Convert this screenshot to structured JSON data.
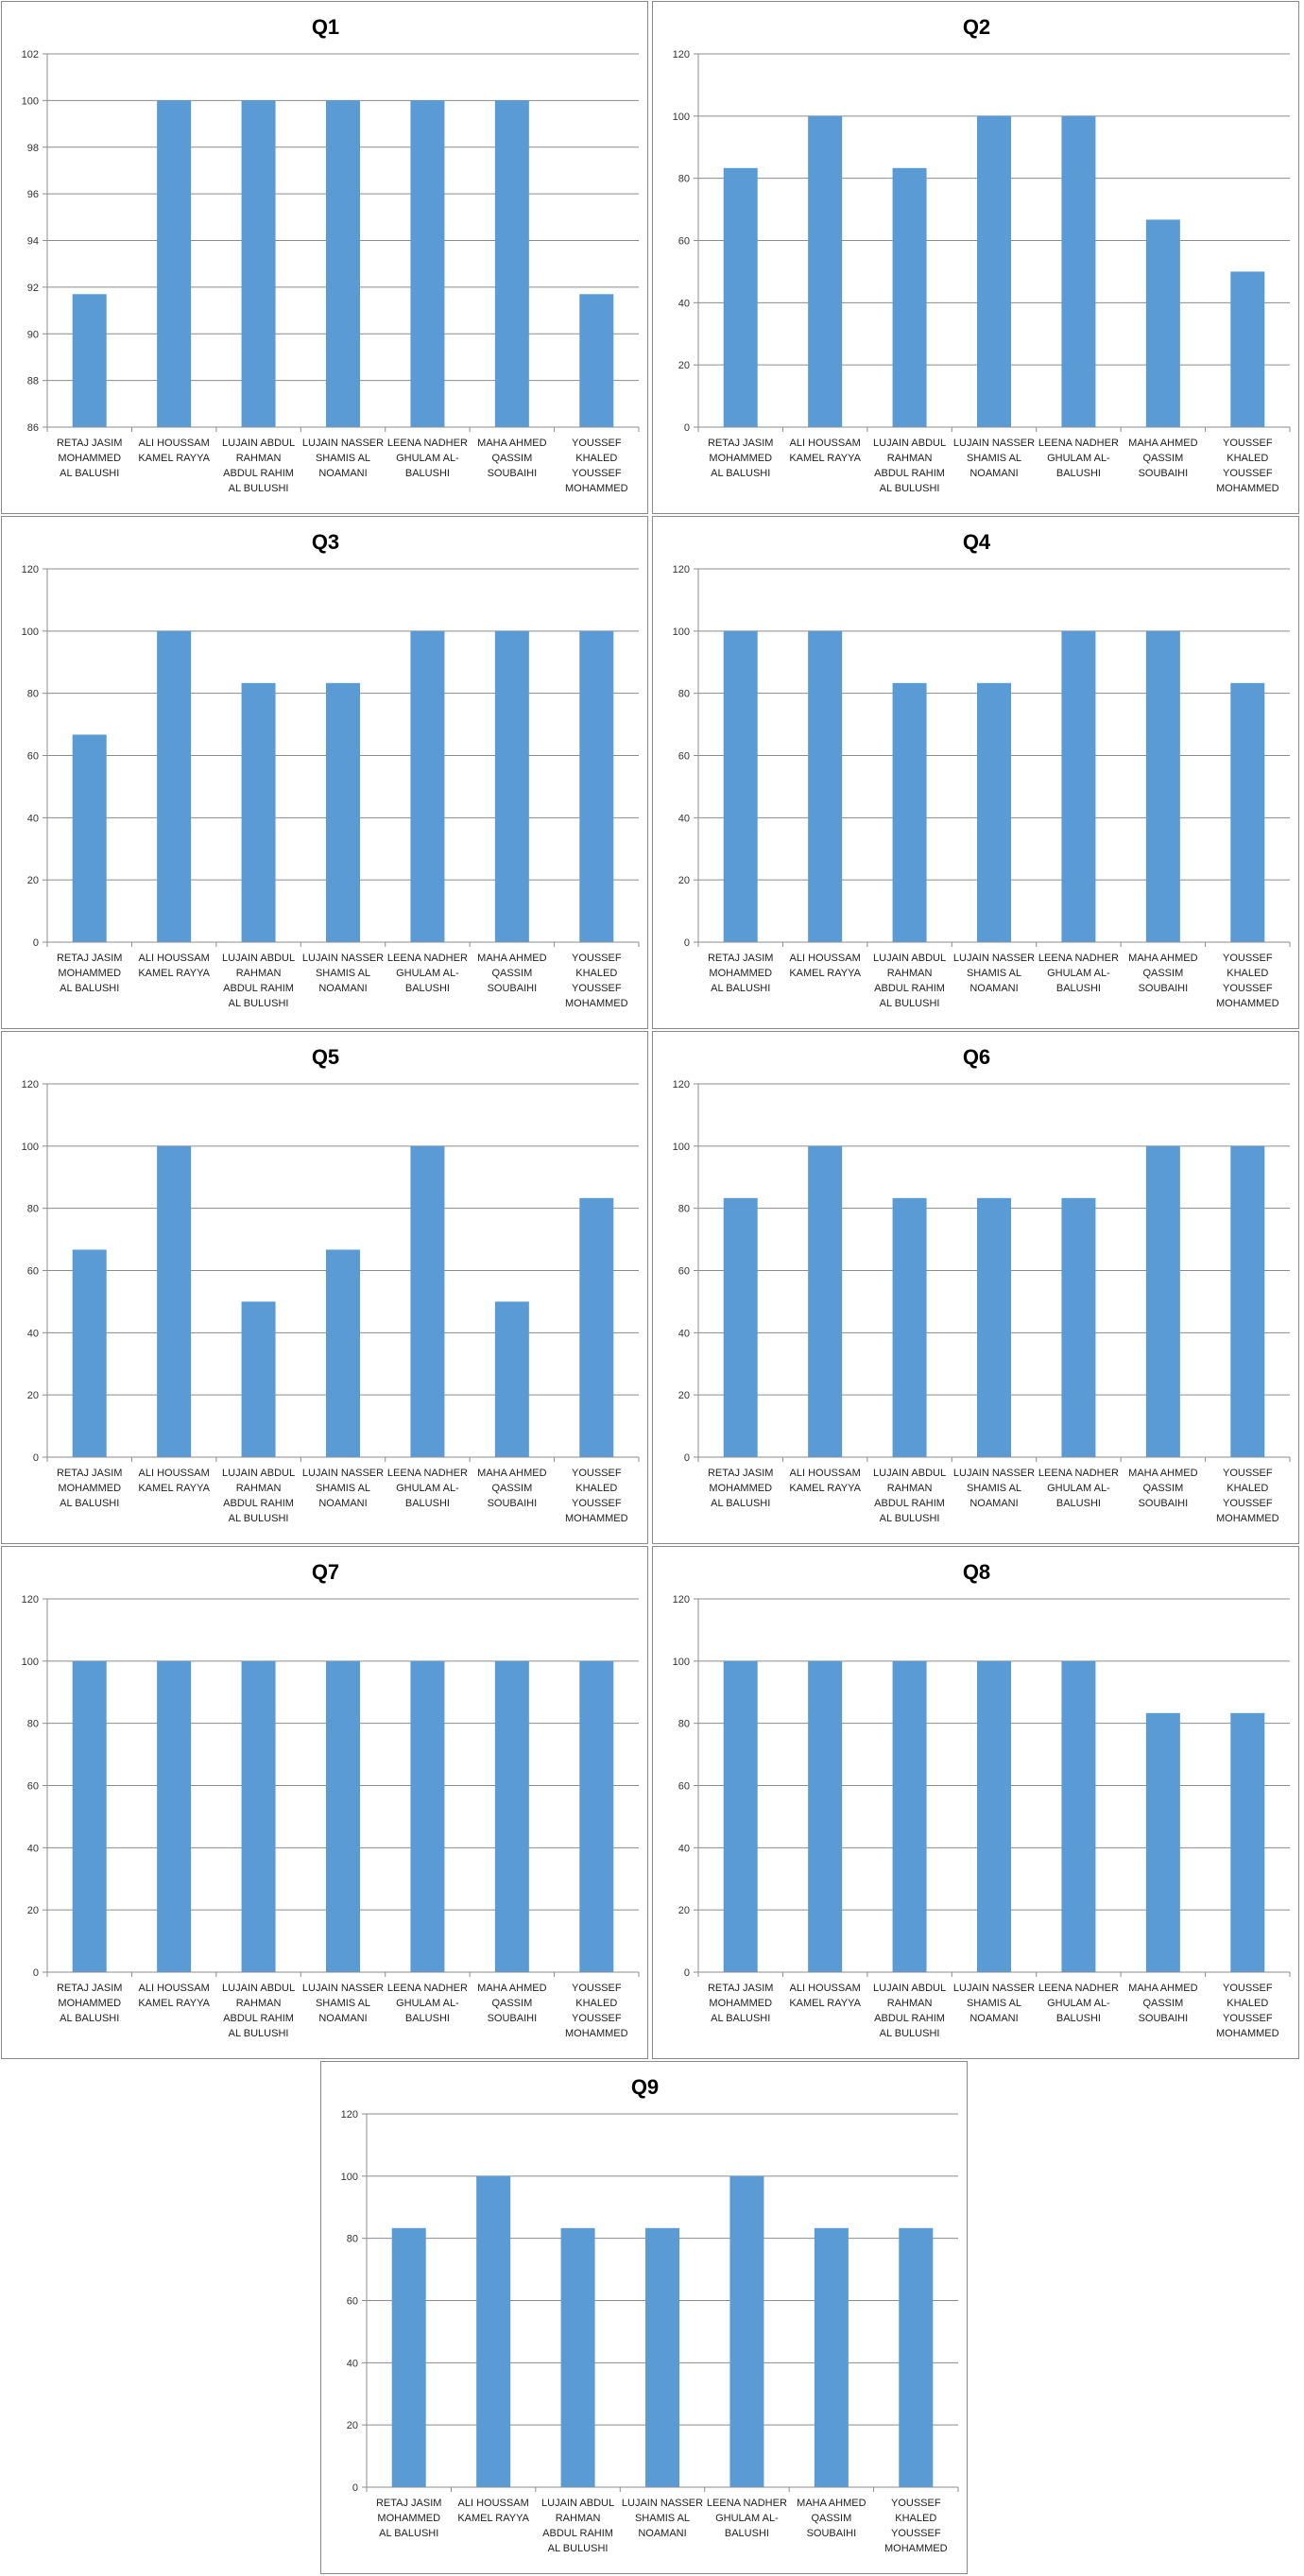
{
  "categories_lines": [
    [
      "RETAJ JASIM",
      "MOHAMMED",
      "AL BALUSHI"
    ],
    [
      "ALI HOUSSAM",
      "KAMEL RAYYA"
    ],
    [
      "LUJAIN ABDUL",
      "RAHMAN",
      "ABDUL RAHIM",
      "AL BULUSHI"
    ],
    [
      "LUJAIN NASSER",
      "SHAMIS AL",
      "NOAMANI"
    ],
    [
      "LEENA NADHER",
      "GHULAM AL-",
      "BALUSHI"
    ],
    [
      "MAHA AHMED",
      "QASSIM",
      "SOUBAIHI"
    ],
    [
      "YOUSSEF",
      "KHALED",
      "YOUSSEF",
      "MOHAMMED"
    ]
  ],
  "colors": {
    "bar": "#5b9bd5",
    "grid": "#8c8c8c"
  },
  "chart_data": [
    {
      "type": "bar",
      "title": "Q1",
      "ylim": [
        86,
        102
      ],
      "ystep": 2,
      "grid": true,
      "legend": "none",
      "categories": [
        "RETAJ JASIM MOHAMMED AL BALUSHI",
        "ALI HOUSSAM KAMEL RAYYA",
        "LUJAIN ABDUL RAHMAN ABDUL RAHIM AL BULUSHI",
        "LUJAIN NASSER SHAMIS AL NOAMANI",
        "LEENA NADHER GHULAM AL-BALUSHI",
        "MAHA AHMED QASSIM SOUBAIHI",
        "YOUSSEF KHALED YOUSSEF MOHAMMED"
      ],
      "values": [
        91.7,
        100,
        100,
        100,
        100,
        100,
        91.7
      ]
    },
    {
      "type": "bar",
      "title": "Q2",
      "ylim": [
        0,
        120
      ],
      "ystep": 20,
      "grid": true,
      "legend": "none",
      "categories": [
        "RETAJ JASIM MOHAMMED AL BALUSHI",
        "ALI HOUSSAM KAMEL RAYYA",
        "LUJAIN ABDUL RAHMAN ABDUL RAHIM AL BULUSHI",
        "LUJAIN NASSER SHAMIS AL NOAMANI",
        "LEENA NADHER GHULAM AL-BALUSHI",
        "MAHA AHMED QASSIM SOUBAIHI",
        "YOUSSEF KHALED YOUSSEF MOHAMMED"
      ],
      "values": [
        83.3,
        100,
        83.3,
        100,
        100,
        66.7,
        50
      ]
    },
    {
      "type": "bar",
      "title": "Q3",
      "ylim": [
        0,
        120
      ],
      "ystep": 20,
      "grid": true,
      "legend": "none",
      "categories": [
        "RETAJ JASIM MOHAMMED AL BALUSHI",
        "ALI HOUSSAM KAMEL RAYYA",
        "LUJAIN ABDUL RAHMAN ABDUL RAHIM AL BULUSHI",
        "LUJAIN NASSER SHAMIS AL NOAMANI",
        "LEENA NADHER GHULAM AL-BALUSHI",
        "MAHA AHMED QASSIM SOUBAIHI",
        "YOUSSEF KHALED YOUSSEF MOHAMMED"
      ],
      "values": [
        66.7,
        100,
        83.3,
        83.3,
        100,
        100,
        100
      ]
    },
    {
      "type": "bar",
      "title": "Q4",
      "ylim": [
        0,
        120
      ],
      "ystep": 20,
      "grid": true,
      "legend": "none",
      "categories": [
        "RETAJ JASIM MOHAMMED AL BALUSHI",
        "ALI HOUSSAM KAMEL RAYYA",
        "LUJAIN ABDUL RAHMAN ABDUL RAHIM AL BULUSHI",
        "LUJAIN NASSER SHAMIS AL NOAMANI",
        "LEENA NADHER GHULAM AL-BALUSHI",
        "MAHA AHMED QASSIM SOUBAIHI",
        "YOUSSEF KHALED YOUSSEF MOHAMMED"
      ],
      "values": [
        100,
        100,
        83.3,
        83.3,
        100,
        100,
        83.3
      ]
    },
    {
      "type": "bar",
      "title": "Q5",
      "ylim": [
        0,
        120
      ],
      "ystep": 20,
      "grid": true,
      "legend": "none",
      "categories": [
        "RETAJ JASIM MOHAMMED AL BALUSHI",
        "ALI HOUSSAM KAMEL RAYYA",
        "LUJAIN ABDUL RAHMAN ABDUL RAHIM AL BULUSHI",
        "LUJAIN NASSER SHAMIS AL NOAMANI",
        "LEENA NADHER GHULAM AL-BALUSHI",
        "MAHA AHMED QASSIM SOUBAIHI",
        "YOUSSEF KHALED YOUSSEF MOHAMMED"
      ],
      "values": [
        66.7,
        100,
        50,
        66.7,
        100,
        50,
        83.3
      ]
    },
    {
      "type": "bar",
      "title": "Q6",
      "ylim": [
        0,
        120
      ],
      "ystep": 20,
      "grid": true,
      "legend": "none",
      "categories": [
        "RETAJ JASIM MOHAMMED AL BALUSHI",
        "ALI HOUSSAM KAMEL RAYYA",
        "LUJAIN ABDUL RAHMAN ABDUL RAHIM AL BULUSHI",
        "LUJAIN NASSER SHAMIS AL NOAMANI",
        "LEENA NADHER GHULAM AL-BALUSHI",
        "MAHA AHMED QASSIM SOUBAIHI",
        "YOUSSEF KHALED YOUSSEF MOHAMMED"
      ],
      "values": [
        83.3,
        100,
        83.3,
        83.3,
        83.3,
        100,
        100
      ]
    },
    {
      "type": "bar",
      "title": "Q7",
      "ylim": [
        0,
        120
      ],
      "ystep": 20,
      "grid": true,
      "legend": "none",
      "categories": [
        "RETAJ JASIM MOHAMMED AL BALUSHI",
        "ALI HOUSSAM KAMEL RAYYA",
        "LUJAIN ABDUL RAHMAN ABDUL RAHIM AL BULUSHI",
        "LUJAIN NASSER SHAMIS AL NOAMANI",
        "LEENA NADHER GHULAM AL-BALUSHI",
        "MAHA AHMED QASSIM SOUBAIHI",
        "YOUSSEF KHALED YOUSSEF MOHAMMED"
      ],
      "values": [
        100,
        100,
        100,
        100,
        100,
        100,
        100
      ]
    },
    {
      "type": "bar",
      "title": "Q8",
      "ylim": [
        0,
        120
      ],
      "ystep": 20,
      "grid": true,
      "legend": "none",
      "categories": [
        "RETAJ JASIM MOHAMMED AL BALUSHI",
        "ALI HOUSSAM KAMEL RAYYA",
        "LUJAIN ABDUL RAHMAN ABDUL RAHIM AL BULUSHI",
        "LUJAIN NASSER SHAMIS AL NOAMANI",
        "LEENA NADHER GHULAM AL-BALUSHI",
        "MAHA AHMED QASSIM SOUBAIHI",
        "YOUSSEF KHALED YOUSSEF MOHAMMED"
      ],
      "values": [
        100,
        100,
        100,
        100,
        100,
        83.3,
        83.3
      ]
    },
    {
      "type": "bar",
      "title": "Q9",
      "ylim": [
        0,
        120
      ],
      "ystep": 20,
      "grid": true,
      "legend": "none",
      "categories": [
        "RETAJ JASIM MOHAMMED AL BALUSHI",
        "ALI HOUSSAM KAMEL RAYYA",
        "LUJAIN ABDUL RAHMAN ABDUL RAHIM AL BULUSHI",
        "LUJAIN NASSER SHAMIS AL NOAMANI",
        "LEENA NADHER GHULAM AL-BALUSHI",
        "MAHA AHMED QASSIM SOUBAIHI",
        "YOUSSEF KHALED YOUSSEF MOHAMMED"
      ],
      "values": [
        83.3,
        100,
        83.3,
        83.3,
        100,
        83.3,
        83.3
      ]
    }
  ]
}
